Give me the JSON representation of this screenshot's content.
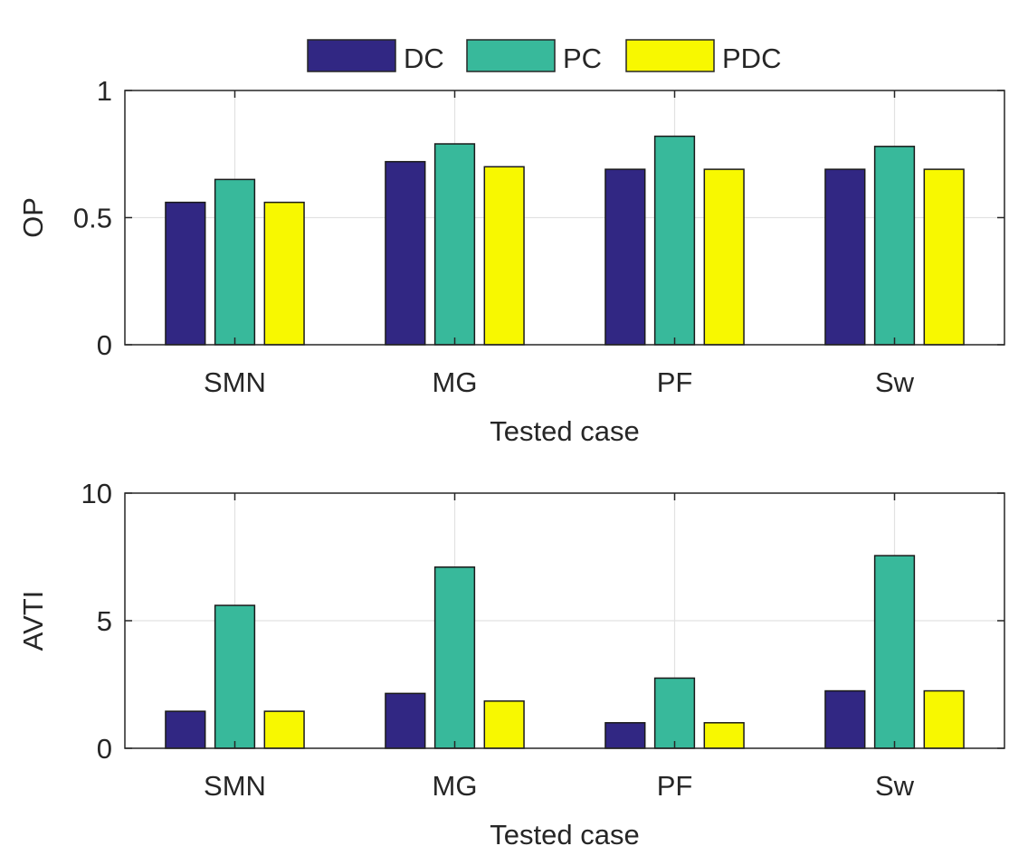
{
  "legend": [
    "DC",
    "PC",
    "PDC"
  ],
  "colors": {
    "DC": "#312783",
    "PC": "#38b99b",
    "PDC": "#f8f800",
    "grid": "#e2e2e2",
    "axis": "#262626"
  },
  "chart_data": [
    {
      "type": "bar",
      "categories": [
        "SMN",
        "MG",
        "PF",
        "Sw"
      ],
      "series": [
        {
          "name": "DC",
          "values": [
            0.56,
            0.72,
            0.69,
            0.69
          ]
        },
        {
          "name": "PC",
          "values": [
            0.65,
            0.79,
            0.82,
            0.78
          ]
        },
        {
          "name": "PDC",
          "values": [
            0.56,
            0.7,
            0.69,
            0.69
          ]
        }
      ],
      "xlabel": "Tested case",
      "ylabel": "OP",
      "ylim": [
        0,
        1
      ],
      "yticks": [
        0,
        0.5,
        1
      ],
      "ytick_labels": [
        "0",
        "0.5",
        "1"
      ],
      "grid": true,
      "legend_position": "top-center outside"
    },
    {
      "type": "bar",
      "categories": [
        "SMN",
        "MG",
        "PF",
        "Sw"
      ],
      "series": [
        {
          "name": "DC",
          "values": [
            1.45,
            2.15,
            1.0,
            2.25
          ]
        },
        {
          "name": "PC",
          "values": [
            5.6,
            7.1,
            2.75,
            7.55
          ]
        },
        {
          "name": "PDC",
          "values": [
            1.45,
            1.85,
            1.0,
            2.25
          ]
        }
      ],
      "xlabel": "Tested case",
      "ylabel": "AVTI",
      "ylim": [
        0,
        10
      ],
      "yticks": [
        0,
        5,
        10
      ],
      "ytick_labels": [
        "0",
        "5",
        "10"
      ],
      "grid": true
    }
  ]
}
